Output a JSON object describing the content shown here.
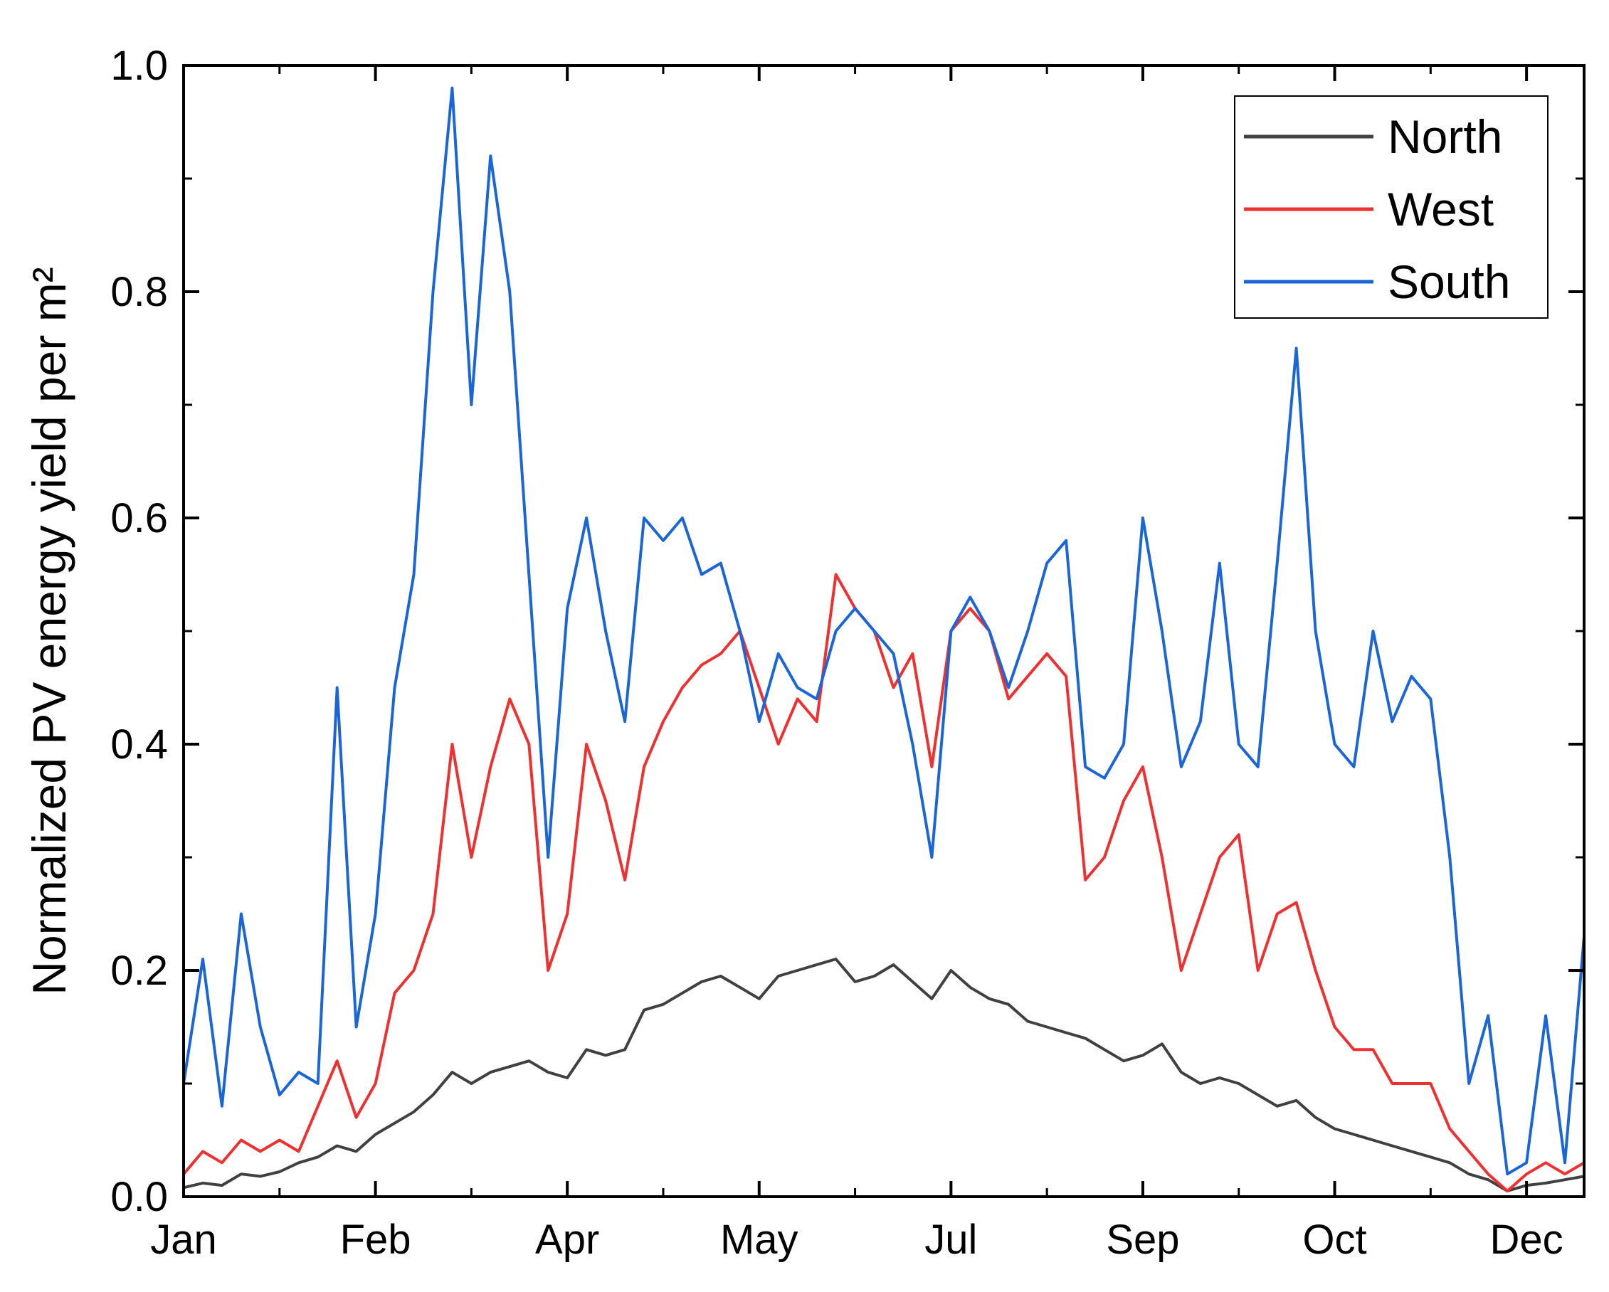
{
  "chart_data": {
    "type": "line",
    "title": "",
    "xlabel": "",
    "ylabel": "Normalized PV energy yield per m²",
    "xlim": [
      0,
      365
    ],
    "ylim": [
      0,
      1.0
    ],
    "y_ticks": [
      0.0,
      0.2,
      0.4,
      0.6,
      0.8,
      1.0
    ],
    "y_tick_labels": [
      "0.0",
      "0.2",
      "0.4",
      "0.6",
      "0.8",
      "1.0"
    ],
    "x_tick_positions": [
      0,
      50,
      100,
      150,
      200,
      250,
      300,
      350
    ],
    "x_tick_labels": [
      "Jan",
      "Feb",
      "Apr",
      "May",
      "Jul",
      "Sep",
      "Oct",
      "Dec"
    ],
    "legend_position": "top-right",
    "series": [
      {
        "name": "North",
        "color": "#404040",
        "x": [
          0,
          5,
          10,
          15,
          20,
          25,
          30,
          35,
          40,
          45,
          50,
          55,
          60,
          65,
          70,
          75,
          80,
          85,
          90,
          95,
          100,
          105,
          110,
          115,
          120,
          125,
          130,
          135,
          140,
          145,
          150,
          155,
          160,
          165,
          170,
          175,
          180,
          185,
          190,
          195,
          200,
          205,
          210,
          215,
          220,
          225,
          230,
          235,
          240,
          245,
          250,
          255,
          260,
          265,
          270,
          275,
          280,
          285,
          290,
          295,
          300,
          305,
          310,
          315,
          320,
          325,
          330,
          335,
          340,
          345,
          350,
          355,
          360,
          365
        ],
        "values": [
          0.008,
          0.012,
          0.01,
          0.02,
          0.018,
          0.022,
          0.03,
          0.035,
          0.045,
          0.04,
          0.055,
          0.065,
          0.075,
          0.09,
          0.11,
          0.1,
          0.11,
          0.115,
          0.12,
          0.11,
          0.105,
          0.13,
          0.125,
          0.13,
          0.165,
          0.17,
          0.18,
          0.19,
          0.195,
          0.185,
          0.175,
          0.195,
          0.2,
          0.205,
          0.21,
          0.19,
          0.195,
          0.205,
          0.19,
          0.175,
          0.2,
          0.185,
          0.175,
          0.17,
          0.155,
          0.15,
          0.145,
          0.14,
          0.13,
          0.12,
          0.125,
          0.135,
          0.11,
          0.1,
          0.105,
          0.1,
          0.09,
          0.08,
          0.085,
          0.07,
          0.06,
          0.055,
          0.05,
          0.045,
          0.04,
          0.035,
          0.03,
          0.02,
          0.015,
          0.005,
          0.01,
          0.012,
          0.015,
          0.018
        ]
      },
      {
        "name": "West",
        "color": "#f03030",
        "x": [
          0,
          5,
          10,
          15,
          20,
          25,
          30,
          35,
          40,
          45,
          50,
          55,
          60,
          65,
          70,
          75,
          80,
          85,
          90,
          95,
          100,
          105,
          110,
          115,
          120,
          125,
          130,
          135,
          140,
          145,
          150,
          155,
          160,
          165,
          170,
          175,
          180,
          185,
          190,
          195,
          200,
          205,
          210,
          215,
          220,
          225,
          230,
          235,
          240,
          245,
          250,
          255,
          260,
          265,
          270,
          275,
          280,
          285,
          290,
          295,
          300,
          305,
          310,
          315,
          320,
          325,
          330,
          335,
          340,
          345,
          350,
          355,
          360,
          365
        ],
        "values": [
          0.02,
          0.04,
          0.03,
          0.05,
          0.04,
          0.05,
          0.04,
          0.08,
          0.12,
          0.07,
          0.1,
          0.18,
          0.2,
          0.25,
          0.4,
          0.3,
          0.38,
          0.44,
          0.4,
          0.2,
          0.25,
          0.4,
          0.35,
          0.28,
          0.38,
          0.42,
          0.45,
          0.47,
          0.48,
          0.5,
          0.45,
          0.4,
          0.44,
          0.42,
          0.55,
          0.52,
          0.5,
          0.45,
          0.48,
          0.38,
          0.5,
          0.52,
          0.5,
          0.44,
          0.46,
          0.48,
          0.46,
          0.28,
          0.3,
          0.35,
          0.38,
          0.3,
          0.2,
          0.25,
          0.3,
          0.32,
          0.2,
          0.25,
          0.26,
          0.2,
          0.15,
          0.13,
          0.13,
          0.1,
          0.1,
          0.1,
          0.06,
          0.04,
          0.02,
          0.005,
          0.02,
          0.03,
          0.02,
          0.03
        ]
      },
      {
        "name": "South",
        "color": "#1a66d9",
        "x": [
          0,
          5,
          10,
          15,
          20,
          25,
          30,
          35,
          40,
          45,
          50,
          55,
          60,
          65,
          70,
          75,
          80,
          85,
          90,
          95,
          100,
          105,
          110,
          115,
          120,
          125,
          130,
          135,
          140,
          145,
          150,
          155,
          160,
          165,
          170,
          175,
          180,
          185,
          190,
          195,
          200,
          205,
          210,
          215,
          220,
          225,
          230,
          235,
          240,
          245,
          250,
          255,
          260,
          265,
          270,
          275,
          280,
          285,
          290,
          295,
          300,
          305,
          310,
          315,
          320,
          325,
          330,
          335,
          340,
          345,
          350,
          355,
          360,
          365
        ],
        "values": [
          0.1,
          0.21,
          0.08,
          0.25,
          0.15,
          0.09,
          0.11,
          0.1,
          0.45,
          0.15,
          0.25,
          0.45,
          0.55,
          0.8,
          0.98,
          0.7,
          0.92,
          0.8,
          0.55,
          0.3,
          0.52,
          0.6,
          0.5,
          0.42,
          0.6,
          0.58,
          0.6,
          0.55,
          0.56,
          0.5,
          0.42,
          0.48,
          0.45,
          0.44,
          0.5,
          0.52,
          0.5,
          0.48,
          0.4,
          0.3,
          0.5,
          0.53,
          0.5,
          0.45,
          0.5,
          0.56,
          0.58,
          0.38,
          0.37,
          0.4,
          0.6,
          0.5,
          0.38,
          0.42,
          0.56,
          0.4,
          0.38,
          0.56,
          0.75,
          0.5,
          0.4,
          0.38,
          0.5,
          0.42,
          0.46,
          0.44,
          0.3,
          0.1,
          0.16,
          0.02,
          0.03,
          0.16,
          0.03,
          0.23
        ]
      }
    ]
  }
}
